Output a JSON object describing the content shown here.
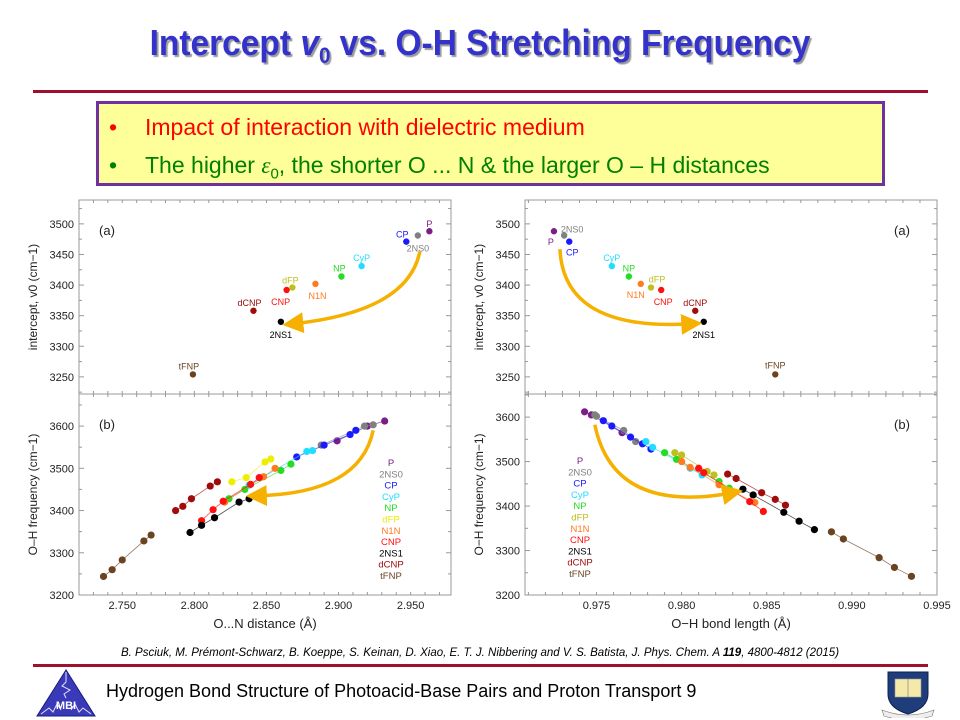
{
  "slide": {
    "title_main": "Intercept ",
    "title_var": "v",
    "title_sub": "0",
    "title_rest": " vs. O-H Stretching Frequency",
    "bullets": [
      {
        "marker": "•",
        "text": "Impact of interaction with dielectric medium",
        "color": "#ff0000"
      },
      {
        "marker": "•",
        "text_pre": "The higher ",
        "symbol": "ε",
        "symbol_sub": "0",
        "text_post": ", the shorter O ... N & the larger O – H distances",
        "color": "#008000"
      }
    ],
    "citation_pre": "B. Psciuk, M. Prémont-Schwarz,  B. Koeppe, S. Keinan, D. Xiao, E. T. J. Nibbering and V. S. Batista, J. Phys. Chem. A ",
    "citation_volume": "119",
    "citation_post": ", 4800-4812  (2015)",
    "footer": "Hydrogen Bond Structure of Photoacid-Base Pairs and Proton Transport 9",
    "left_logo_text": "MBI",
    "accent_color": "#a0102a",
    "title_color": "#3333cc",
    "box_border_color": "#7030a0",
    "box_fill_color": "#ffff99"
  },
  "chart_data": [
    {
      "type": "scatter",
      "panel": "left-(a)",
      "label": "(a)",
      "xlabel": "O...N distance (Å)",
      "ylabel": "intercept, v0 (cm−1)",
      "xlim": [
        2.72,
        2.978
      ],
      "ylim": [
        3222,
        3539
      ],
      "yticks": [
        3250,
        3300,
        3350,
        3400,
        3450,
        3500
      ],
      "points": [
        {
          "name": "P",
          "x": 2.963,
          "y": 3488,
          "color": "#7b1f86"
        },
        {
          "name": "2NS0",
          "x": 2.955,
          "y": 3481,
          "color": "#808080"
        },
        {
          "name": "CP",
          "x": 2.947,
          "y": 3471,
          "color": "#1a1aff"
        },
        {
          "name": "CyP",
          "x": 2.916,
          "y": 3431,
          "color": "#22ddff"
        },
        {
          "name": "NP",
          "x": 2.902,
          "y": 3414,
          "color": "#22dd22"
        },
        {
          "name": "dFP",
          "x": 2.868,
          "y": 3396,
          "color": "#bfbf20"
        },
        {
          "name": "N1N",
          "x": 2.884,
          "y": 3402,
          "color": "#ff7a20"
        },
        {
          "name": "CNP",
          "x": 2.864,
          "y": 3392,
          "color": "#ff1010"
        },
        {
          "name": "dCNP",
          "x": 2.841,
          "y": 3358,
          "color": "#a00c0c"
        },
        {
          "name": "2NS1",
          "x": 2.86,
          "y": 3340,
          "color": "#000000"
        },
        {
          "name": "tFNP",
          "x": 2.799,
          "y": 3254,
          "color": "#6b4320"
        }
      ],
      "annotation": "arrow from 2NS0 to 2NS1"
    },
    {
      "type": "line",
      "panel": "left-(b)",
      "label": "(b)",
      "xlabel": "O...N distance (Å)",
      "ylabel": "O–H frequency (cm−1)",
      "xlim": [
        2.72,
        2.978
      ],
      "ylim": [
        3200,
        3676
      ],
      "xticks": [
        2.75,
        2.8,
        2.85,
        2.9,
        2.95
      ],
      "yticks": [
        3200,
        3300,
        3400,
        3500,
        3600
      ],
      "legend": [
        "P",
        "2NS0",
        "CP",
        "CyP",
        "NP",
        "dFP",
        "N1N",
        "CNP",
        "2NS1",
        "dCNP",
        "tFNP"
      ],
      "legend_placement": "right",
      "series": [
        {
          "name": "P",
          "color": "#7b1f86",
          "points": [
            [
              2.899,
              3565
            ],
            [
              2.92,
              3600
            ],
            [
              2.932,
              3612
            ]
          ]
        },
        {
          "name": "2NS0",
          "color": "#808080",
          "points": [
            [
              2.888,
              3555
            ],
            [
              2.918,
              3600
            ],
            [
              2.924,
              3603
            ]
          ]
        },
        {
          "name": "CP",
          "color": "#1a1aff",
          "points": [
            [
              2.871,
              3527
            ],
            [
              2.89,
              3555
            ],
            [
              2.908,
              3580
            ],
            [
              2.912,
              3590
            ]
          ]
        },
        {
          "name": "CyP",
          "color": "#22ddff",
          "points": [
            [
              2.838,
              3460
            ],
            [
              2.878,
              3540
            ],
            [
              2.882,
              3542
            ]
          ]
        },
        {
          "name": "NP",
          "color": "#22dd22",
          "points": [
            [
              2.824,
              3428
            ],
            [
              2.835,
              3450
            ],
            [
              2.86,
              3495
            ],
            [
              2.867,
              3510
            ]
          ]
        },
        {
          "name": "dFP",
          "color": "#eeee00",
          "points": [
            [
              2.826,
              3468
            ],
            [
              2.836,
              3478
            ],
            [
              2.849,
              3515
            ],
            [
              2.853,
              3522
            ]
          ]
        },
        {
          "name": "N1N",
          "color": "#ff7a20",
          "points": [
            [
              2.821,
              3420
            ],
            [
              2.848,
              3480
            ],
            [
              2.856,
              3500
            ]
          ]
        },
        {
          "name": "CNP",
          "color": "#ff1010",
          "points": [
            [
              2.805,
              3376
            ],
            [
              2.813,
              3402
            ],
            [
              2.82,
              3422
            ],
            [
              2.839,
              3462
            ],
            [
              2.845,
              3478
            ]
          ]
        },
        {
          "name": "2NS1",
          "color": "#000000",
          "points": [
            [
              2.797,
              3348
            ],
            [
              2.805,
              3365
            ],
            [
              2.814,
              3383
            ],
            [
              2.831,
              3420
            ],
            [
              2.838,
              3428
            ]
          ]
        },
        {
          "name": "dCNP",
          "color": "#a00c0c",
          "points": [
            [
              2.787,
              3400
            ],
            [
              2.792,
              3410
            ],
            [
              2.798,
              3428
            ],
            [
              2.811,
              3458
            ],
            [
              2.816,
              3468
            ]
          ]
        },
        {
          "name": "tFNP",
          "color": "#6b4320",
          "points": [
            [
              2.737,
              3244
            ],
            [
              2.743,
              3260
            ],
            [
              2.75,
              3283
            ],
            [
              2.765,
              3328
            ],
            [
              2.77,
              3342
            ]
          ]
        }
      ],
      "annotation": "arrow from 2NS0 to 2NS1"
    },
    {
      "type": "scatter",
      "panel": "right-(a)",
      "label": "(a)",
      "xlabel": "O−H bond length (Å)",
      "ylabel": "intercept, v0 (cm−1)",
      "xlim": [
        0.9708,
        0.995
      ],
      "ylim": [
        3222,
        3539
      ],
      "yticks": [
        3250,
        3300,
        3350,
        3400,
        3450,
        3500
      ],
      "points": [
        {
          "name": "P",
          "x": 0.9725,
          "y": 3488,
          "color": "#7b1f86"
        },
        {
          "name": "2NS0",
          "x": 0.9731,
          "y": 3481,
          "color": "#808080"
        },
        {
          "name": "CP",
          "x": 0.9734,
          "y": 3471,
          "color": "#1a1aff"
        },
        {
          "name": "CyP",
          "x": 0.9759,
          "y": 3431,
          "color": "#22ddff"
        },
        {
          "name": "NP",
          "x": 0.9769,
          "y": 3414,
          "color": "#22dd22"
        },
        {
          "name": "N1N",
          "x": 0.9776,
          "y": 3402,
          "color": "#ff7a20"
        },
        {
          "name": "dFP",
          "x": 0.9782,
          "y": 3396,
          "color": "#bfbf20"
        },
        {
          "name": "CNP",
          "x": 0.9788,
          "y": 3392,
          "color": "#ff1010"
        },
        {
          "name": "dCNP",
          "x": 0.9808,
          "y": 3358,
          "color": "#a00c0c"
        },
        {
          "name": "2NS1",
          "x": 0.9813,
          "y": 3340,
          "color": "#000000"
        },
        {
          "name": "tFNP",
          "x": 0.9855,
          "y": 3254,
          "color": "#6b4320"
        }
      ],
      "annotation": "arrow from P/2NS0 to 2NS1"
    },
    {
      "type": "line",
      "panel": "right-(b)",
      "label": "(b)",
      "xlabel": "O−H bond length (Å)",
      "ylabel": "O−H frequency (cm−1)",
      "xlim": [
        0.9708,
        0.995
      ],
      "ylim": [
        3200,
        3652
      ],
      "xticks": [
        0.975,
        0.98,
        0.985,
        0.99,
        0.995
      ],
      "yticks": [
        3200,
        3300,
        3400,
        3500,
        3600
      ],
      "legend": [
        "P",
        "2NS0",
        "CP",
        "CyP",
        "NP",
        "dFP",
        "N1N",
        "CNP",
        "2NS1",
        "dCNP",
        "tFNP"
      ],
      "legend_placement": "left",
      "series": [
        {
          "name": "P",
          "color": "#7b1f86",
          "points": [
            [
              0.9743,
              3612
            ],
            [
              0.9747,
              3605
            ],
            [
              0.9765,
              3565
            ]
          ]
        },
        {
          "name": "2NS0",
          "color": "#808080",
          "points": [
            [
              0.9749,
              3605
            ],
            [
              0.975,
              3602
            ],
            [
              0.9766,
              3570
            ],
            [
              0.9773,
              3545
            ]
          ]
        },
        {
          "name": "CP",
          "color": "#1a1aff",
          "points": [
            [
              0.9754,
              3592
            ],
            [
              0.9759,
              3580
            ],
            [
              0.977,
              3555
            ],
            [
              0.9777,
              3540
            ],
            [
              0.9782,
              3528
            ]
          ]
        },
        {
          "name": "CyP",
          "color": "#22ddff",
          "points": [
            [
              0.9779,
              3545
            ],
            [
              0.9783,
              3532
            ],
            [
              0.9805,
              3485
            ],
            [
              0.9812,
              3470
            ]
          ]
        },
        {
          "name": "NP",
          "color": "#22dd22",
          "points": [
            [
              0.979,
              3520
            ],
            [
              0.9797,
              3505
            ],
            [
              0.9822,
              3455
            ],
            [
              0.9828,
              3440
            ]
          ]
        },
        {
          "name": "dFP",
          "color": "#bfbf20",
          "points": [
            [
              0.9796,
              3520
            ],
            [
              0.98,
              3515
            ],
            [
              0.9815,
              3478
            ],
            [
              0.9819,
              3470
            ]
          ]
        },
        {
          "name": "N1N",
          "color": "#ff7a20",
          "points": [
            [
              0.98,
              3500
            ],
            [
              0.9805,
              3487
            ],
            [
              0.9822,
              3448
            ],
            [
              0.9843,
              3408
            ]
          ]
        },
        {
          "name": "CNP",
          "color": "#ff1010",
          "points": [
            [
              0.981,
              3485
            ],
            [
              0.9813,
              3475
            ],
            [
              0.984,
              3410
            ],
            [
              0.9848,
              3388
            ]
          ]
        },
        {
          "name": "2NS1",
          "color": "#000000",
          "points": [
            [
              0.9836,
              3438
            ],
            [
              0.9842,
              3425
            ],
            [
              0.986,
              3386
            ],
            [
              0.9869,
              3366
            ],
            [
              0.9878,
              3347
            ]
          ]
        },
        {
          "name": "dCNP",
          "color": "#a00c0c",
          "points": [
            [
              0.9827,
              3472
            ],
            [
              0.9832,
              3462
            ],
            [
              0.9847,
              3430
            ],
            [
              0.9855,
              3415
            ],
            [
              0.9861,
              3402
            ]
          ]
        },
        {
          "name": "tFNP",
          "color": "#6b4320",
          "points": [
            [
              0.9888,
              3342
            ],
            [
              0.9895,
              3326
            ],
            [
              0.9916,
              3284
            ],
            [
              0.9925,
              3262
            ],
            [
              0.9935,
              3242
            ]
          ]
        }
      ],
      "annotation": "arrow from 2NS0 to 2NS1"
    }
  ]
}
